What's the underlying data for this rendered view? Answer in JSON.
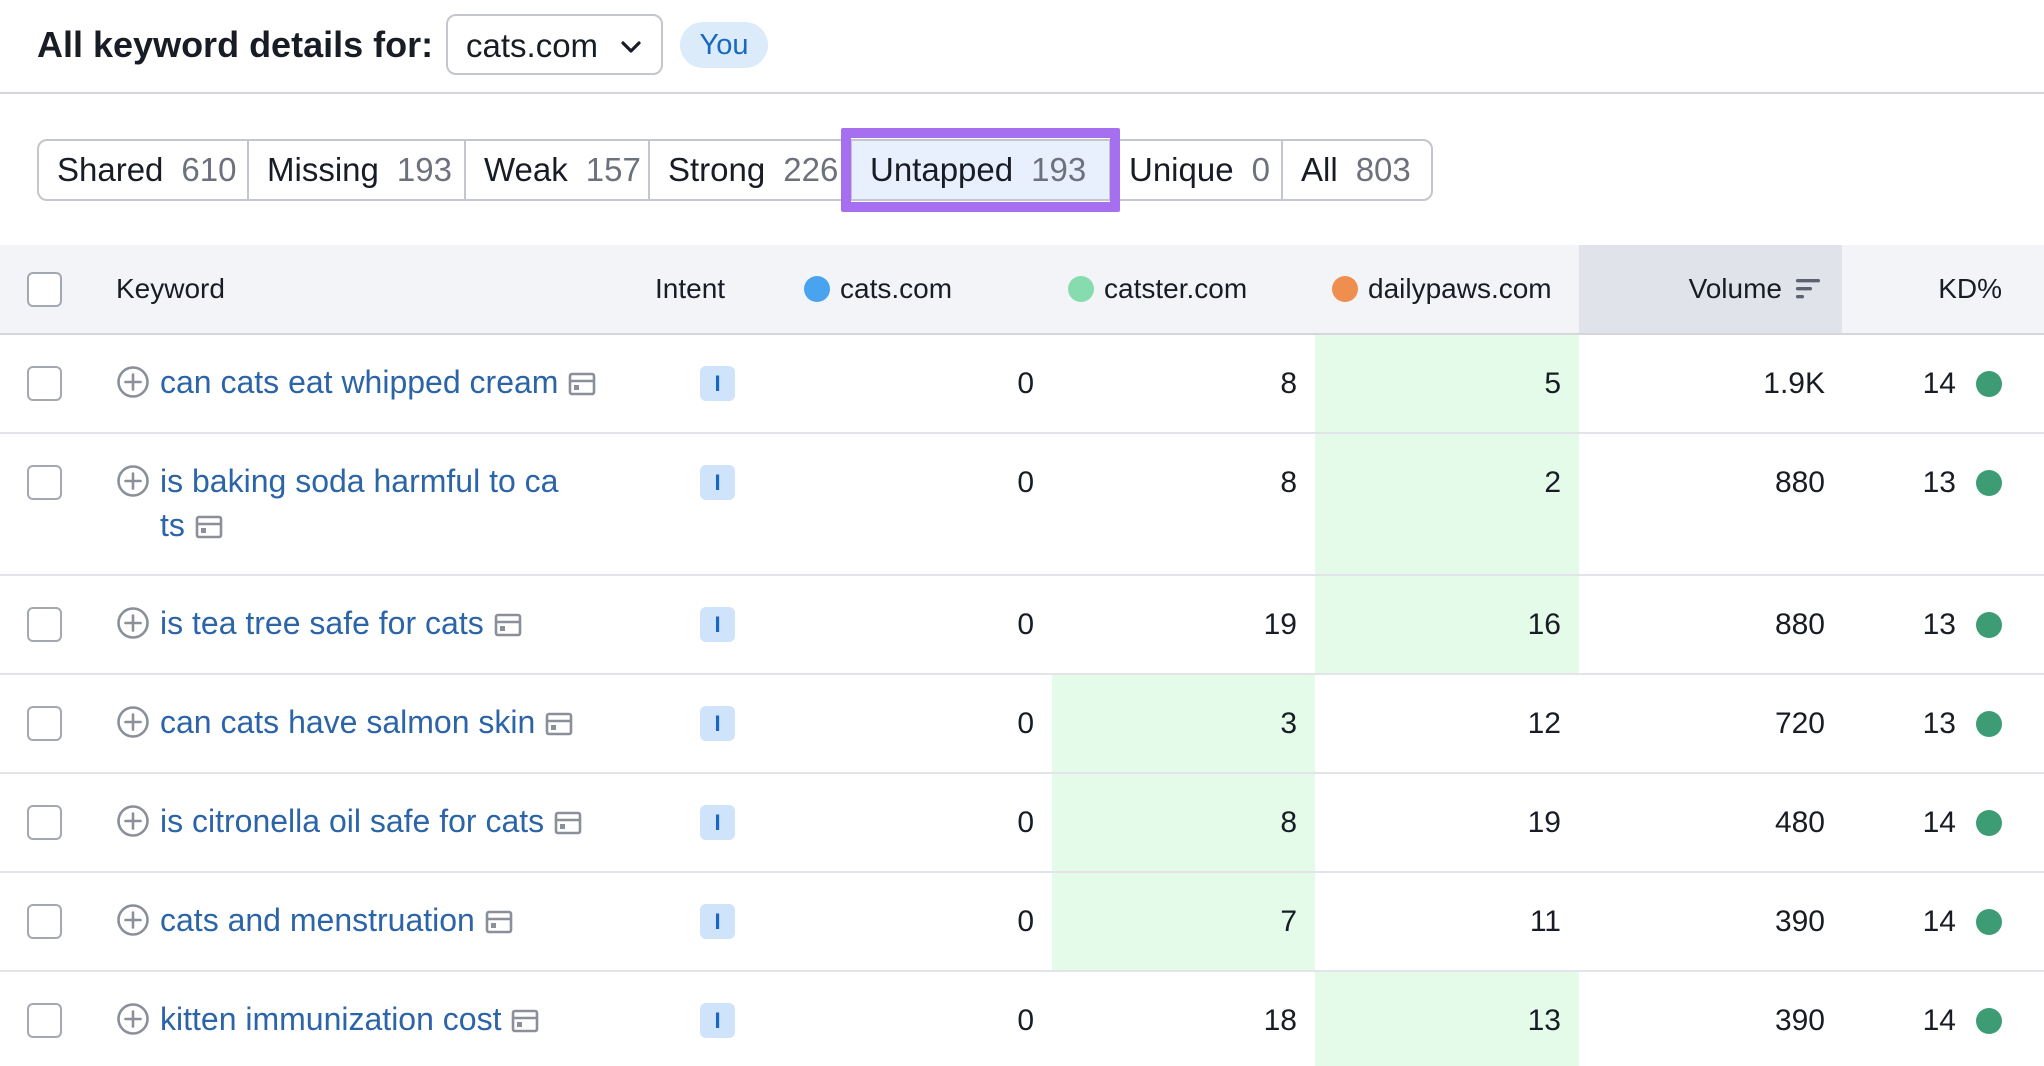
{
  "header": {
    "title": "All keyword details for:",
    "domain": "cats.com",
    "you_badge": "You"
  },
  "tabs": [
    {
      "label": "Shared",
      "count": "610"
    },
    {
      "label": "Missing",
      "count": "193"
    },
    {
      "label": "Weak",
      "count": "157"
    },
    {
      "label": "Strong",
      "count": "226"
    },
    {
      "label": "Untapped",
      "count": "193"
    },
    {
      "label": "Unique",
      "count": "0"
    },
    {
      "label": "All",
      "count": "803"
    }
  ],
  "active_tab": "Untapped",
  "columns": {
    "keyword": "Keyword",
    "intent": "Intent",
    "domain1": "cats.com",
    "domain2": "catster.com",
    "domain3": "dailypaws.com",
    "volume": "Volume",
    "kd": "KD%"
  },
  "colors": {
    "domain1": "#4aa3ee",
    "domain2": "#86dcae",
    "domain3": "#ee8f4f",
    "highlight": "#e3fbe8",
    "kd_easy": "#3d9c74",
    "active_tab_outline": "#a66ff0"
  },
  "rows": [
    {
      "keyword_line1": "can cats eat whipped cream",
      "keyword_line2": "",
      "intent": "I",
      "d1": "0",
      "d2": "8",
      "d3": "5",
      "volume": "1.9K",
      "kd": "14",
      "best": "d3"
    },
    {
      "keyword_line1": "is baking soda harmful to ca",
      "keyword_line2": "ts",
      "intent": "I",
      "d1": "0",
      "d2": "8",
      "d3": "2",
      "volume": "880",
      "kd": "13",
      "best": "d3"
    },
    {
      "keyword_line1": "is tea tree safe for cats",
      "keyword_line2": "",
      "intent": "I",
      "d1": "0",
      "d2": "19",
      "d3": "16",
      "volume": "880",
      "kd": "13",
      "best": "d3"
    },
    {
      "keyword_line1": "can cats have salmon skin",
      "keyword_line2": "",
      "intent": "I",
      "d1": "0",
      "d2": "3",
      "d3": "12",
      "volume": "720",
      "kd": "13",
      "best": "d2"
    },
    {
      "keyword_line1": "is citronella oil safe for cats",
      "keyword_line2": "",
      "intent": "I",
      "d1": "0",
      "d2": "8",
      "d3": "19",
      "volume": "480",
      "kd": "14",
      "best": "d2"
    },
    {
      "keyword_line1": "cats and menstruation",
      "keyword_line2": "",
      "intent": "I",
      "d1": "0",
      "d2": "7",
      "d3": "11",
      "volume": "390",
      "kd": "14",
      "best": "d2"
    },
    {
      "keyword_line1": "kitten immunization cost",
      "keyword_line2": "",
      "intent": "I",
      "d1": "0",
      "d2": "18",
      "d3": "13",
      "volume": "390",
      "kd": "14",
      "best": "d3"
    }
  ]
}
